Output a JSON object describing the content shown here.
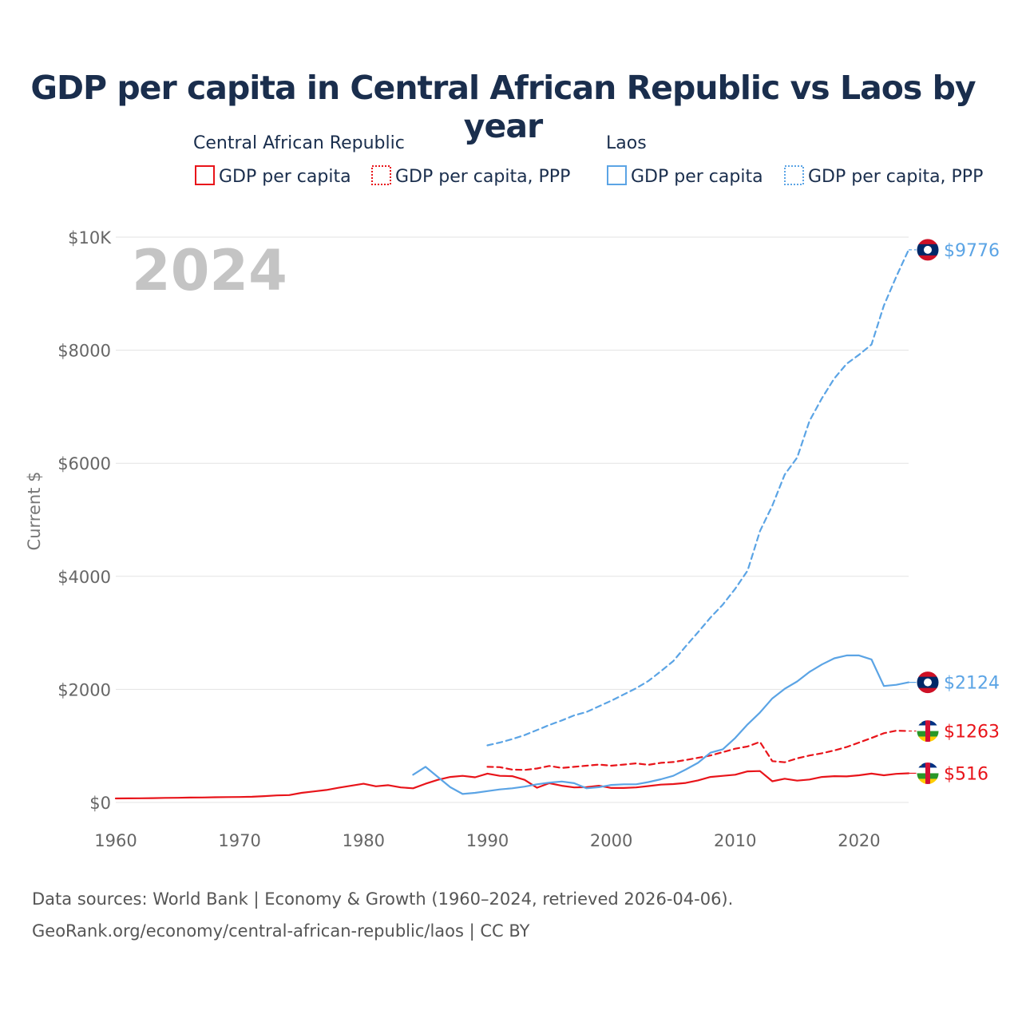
{
  "chart_data": {
    "type": "line",
    "title": "GDP per capita in Central African Republic vs Laos by year",
    "year_watermark": "2024",
    "ylabel": "Current $",
    "xlabel": "",
    "xlim": [
      1960,
      2024
    ],
    "ylim": [
      0,
      10000
    ],
    "x_ticks": [
      1960,
      1970,
      1980,
      1990,
      2000,
      2010,
      2020
    ],
    "x_tick_labels": [
      "1960",
      "1970",
      "1980",
      "1990",
      "2000",
      "2010",
      "2020"
    ],
    "y_ticks": [
      0,
      2000,
      4000,
      6000,
      8000,
      10000
    ],
    "y_tick_labels": [
      "$0",
      "$2000",
      "$4000",
      "$6000",
      "$8000",
      "$10K"
    ],
    "grid": true,
    "legend": {
      "placement": "top",
      "groups": [
        {
          "country": "Central African Republic",
          "color": "#e8141a",
          "items": [
            {
              "label": "GDP per capita",
              "style": "solid"
            },
            {
              "label": "GDP per capita, PPP",
              "style": "dotted"
            }
          ]
        },
        {
          "country": "Laos",
          "color": "#5ba4e5",
          "items": [
            {
              "label": "GDP per capita",
              "style": "solid"
            },
            {
              "label": "GDP per capita, PPP",
              "style": "dotted"
            }
          ]
        }
      ]
    },
    "series": [
      {
        "name": "Central African Republic GDP per capita",
        "country": "Central African Republic",
        "color": "#e8141a",
        "dash": "solid",
        "flag": "caf",
        "end_label": "$516",
        "x": [
          1960,
          1961,
          1962,
          1963,
          1964,
          1965,
          1966,
          1967,
          1968,
          1969,
          1970,
          1971,
          1972,
          1973,
          1974,
          1975,
          1976,
          1977,
          1978,
          1979,
          1980,
          1981,
          1982,
          1983,
          1984,
          1985,
          1986,
          1987,
          1988,
          1989,
          1990,
          1991,
          1992,
          1993,
          1994,
          1995,
          1996,
          1997,
          1998,
          1999,
          2000,
          2001,
          2002,
          2003,
          2004,
          2005,
          2006,
          2007,
          2008,
          2009,
          2010,
          2011,
          2012,
          2013,
          2014,
          2015,
          2016,
          2017,
          2018,
          2019,
          2020,
          2021,
          2022,
          2023,
          2024
        ],
        "values": [
          70,
          72,
          74,
          76,
          80,
          82,
          86,
          88,
          92,
          94,
          96,
          100,
          112,
          124,
          130,
          170,
          195,
          220,
          260,
          295,
          330,
          285,
          305,
          265,
          250,
          330,
          400,
          450,
          470,
          445,
          510,
          470,
          465,
          400,
          260,
          340,
          295,
          265,
          270,
          295,
          255,
          255,
          265,
          290,
          315,
          325,
          345,
          390,
          450,
          470,
          490,
          550,
          555,
          375,
          420,
          385,
          405,
          450,
          465,
          460,
          480,
          510,
          480,
          505,
          516
        ]
      },
      {
        "name": "Central African Republic GDP per capita, PPP",
        "country": "Central African Republic",
        "color": "#e8141a",
        "dash": "dashed",
        "flag": "caf",
        "end_label": "$1263",
        "x": [
          1990,
          1991,
          1992,
          1993,
          1994,
          1995,
          1996,
          1997,
          1998,
          1999,
          2000,
          2001,
          2002,
          2003,
          2004,
          2005,
          2006,
          2007,
          2008,
          2009,
          2010,
          2011,
          2012,
          2013,
          2014,
          2015,
          2016,
          2017,
          2018,
          2019,
          2020,
          2021,
          2022,
          2023,
          2024
        ],
        "values": [
          630,
          625,
          580,
          575,
          600,
          645,
          610,
          630,
          650,
          670,
          650,
          670,
          690,
          665,
          700,
          715,
          750,
          790,
          830,
          890,
          950,
          990,
          1070,
          730,
          710,
          780,
          830,
          870,
          920,
          980,
          1060,
          1140,
          1225,
          1270,
          1263
        ]
      },
      {
        "name": "Laos GDP per capita",
        "country": "Laos",
        "color": "#5ba4e5",
        "dash": "solid",
        "flag": "lao",
        "end_label": "$2124",
        "x": [
          1984,
          1985,
          1986,
          1987,
          1988,
          1989,
          1990,
          1991,
          1992,
          1993,
          1994,
          1995,
          1996,
          1997,
          1998,
          1999,
          2000,
          2001,
          2002,
          2003,
          2004,
          2005,
          2006,
          2007,
          2008,
          2009,
          2010,
          2011,
          2012,
          2013,
          2014,
          2015,
          2016,
          2017,
          2018,
          2019,
          2020,
          2021,
          2022,
          2023,
          2024
        ],
        "values": [
          490,
          630,
          450,
          270,
          150,
          170,
          200,
          230,
          250,
          280,
          320,
          350,
          370,
          340,
          250,
          270,
          310,
          320,
          320,
          360,
          410,
          470,
          580,
          700,
          880,
          940,
          1140,
          1380,
          1590,
          1840,
          2010,
          2140,
          2310,
          2440,
          2550,
          2600,
          2600,
          2530,
          2060,
          2080,
          2124
        ]
      },
      {
        "name": "Laos GDP per capita, PPP",
        "country": "Laos",
        "color": "#5ba4e5",
        "dash": "dashed",
        "flag": "lao",
        "end_label": "$9776",
        "x": [
          1990,
          1991,
          1992,
          1993,
          1994,
          1995,
          1996,
          1997,
          1998,
          1999,
          2000,
          2001,
          2002,
          2003,
          2004,
          2005,
          2006,
          2007,
          2008,
          2009,
          2010,
          2011,
          2012,
          2013,
          2014,
          2015,
          2016,
          2017,
          2018,
          2019,
          2020,
          2021,
          2022,
          2023,
          2024
        ],
        "values": [
          1010,
          1060,
          1120,
          1190,
          1280,
          1370,
          1450,
          1540,
          1600,
          1700,
          1800,
          1910,
          2020,
          2150,
          2320,
          2500,
          2760,
          3010,
          3270,
          3500,
          3780,
          4100,
          4800,
          5250,
          5800,
          6100,
          6750,
          7150,
          7500,
          7760,
          7920,
          8100,
          8790,
          9300,
          9776
        ]
      }
    ]
  },
  "footer": {
    "line1": "Data sources: World Bank | Economy & Growth (1960–2024, retrieved 2026-04-06).",
    "line2": "GeoRank.org/economy/central-african-republic/laos | CC BY"
  }
}
